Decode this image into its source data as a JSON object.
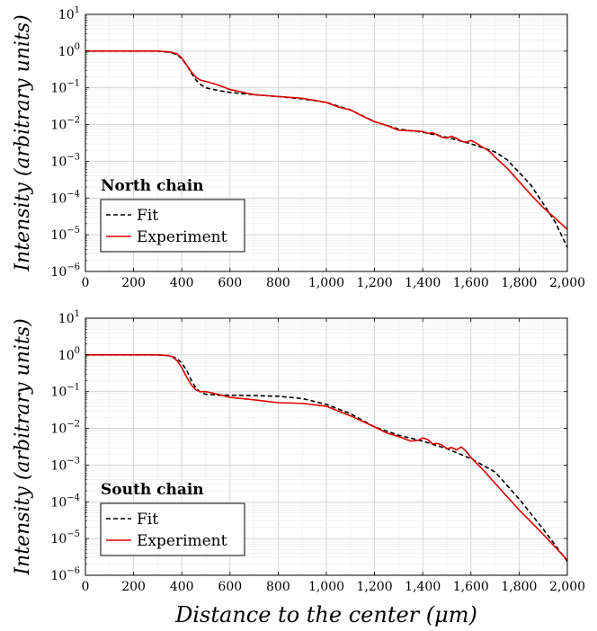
{
  "chart_data": [
    {
      "type": "line",
      "title": "North chain",
      "ylabel": "Intensity (arbitrary units)",
      "xlabel": "",
      "xlim": [
        0,
        2000
      ],
      "ylim": [
        1e-06,
        10
      ],
      "yscale": "log",
      "grid": true,
      "legend": "bottom-left",
      "x_ticks": [
        "0",
        "200",
        "400",
        "600",
        "800",
        "1,000",
        "1,200",
        "1,400",
        "1,600",
        "1,800",
        "2,000"
      ],
      "y_ticks": [
        {
          "base": "10",
          "exp": "1"
        },
        {
          "base": "10",
          "exp": "0"
        },
        {
          "base": "10",
          "exp": "−1"
        },
        {
          "base": "10",
          "exp": "−2"
        },
        {
          "base": "10",
          "exp": "−3"
        },
        {
          "base": "10",
          "exp": "−4"
        },
        {
          "base": "10",
          "exp": "−5"
        },
        {
          "base": "10",
          "exp": "−6"
        }
      ],
      "series": [
        {
          "name": "Fit",
          "color": "#000000",
          "style": "dashed",
          "x": [
            0,
            300,
            350,
            380,
            400,
            420,
            440,
            460,
            480,
            500,
            550,
            600,
            700,
            800,
            900,
            1000,
            1100,
            1200,
            1300,
            1400,
            1500,
            1600,
            1700,
            1750,
            1800,
            1850,
            1900,
            1950,
            2000
          ],
          "y": [
            1,
            1,
            0.93,
            0.8,
            0.62,
            0.42,
            0.25,
            0.16,
            0.12,
            0.1,
            0.085,
            0.075,
            0.065,
            0.058,
            0.05,
            0.04,
            0.025,
            0.012,
            0.0075,
            0.0062,
            0.0045,
            0.003,
            0.0018,
            0.0011,
            0.0005,
            0.00022,
            7e-05,
            2.2e-05,
            4.5e-06
          ]
        },
        {
          "name": "Experiment",
          "color": "#dd0000",
          "style": "solid",
          "x": [
            0,
            300,
            350,
            380,
            400,
            420,
            440,
            460,
            480,
            500,
            550,
            600,
            700,
            800,
            900,
            1000,
            1050,
            1100,
            1150,
            1200,
            1250,
            1300,
            1350,
            1400,
            1420,
            1440,
            1460,
            1480,
            1500,
            1520,
            1540,
            1560,
            1580,
            1600,
            1620,
            1640,
            1660,
            1680,
            1700,
            1750,
            1800,
            1850,
            1900,
            1950,
            2000
          ],
          "y": [
            1,
            1,
            0.95,
            0.85,
            0.65,
            0.42,
            0.27,
            0.19,
            0.16,
            0.15,
            0.12,
            0.09,
            0.065,
            0.058,
            0.052,
            0.04,
            0.03,
            0.025,
            0.017,
            0.012,
            0.0095,
            0.007,
            0.0068,
            0.0065,
            0.0058,
            0.006,
            0.0053,
            0.0045,
            0.0043,
            0.0048,
            0.0042,
            0.0035,
            0.0033,
            0.0037,
            0.0032,
            0.0026,
            0.0022,
            0.0018,
            0.0013,
            0.00065,
            0.00028,
            0.00012,
            5.5e-05,
            2.8e-05,
            1.4e-05
          ]
        }
      ]
    },
    {
      "type": "line",
      "title": "South chain",
      "ylabel": "Intensity (arbitrary units)",
      "xlabel": "Distance to the center (μm)",
      "xlim": [
        0,
        2000
      ],
      "ylim": [
        1e-06,
        10
      ],
      "yscale": "log",
      "grid": true,
      "legend": "bottom-left",
      "x_ticks": [
        "0",
        "200",
        "400",
        "600",
        "800",
        "1,000",
        "1,200",
        "1,400",
        "1,600",
        "1,800",
        "2,000"
      ],
      "y_ticks": [
        {
          "base": "10",
          "exp": "1"
        },
        {
          "base": "10",
          "exp": "0"
        },
        {
          "base": "10",
          "exp": "−1"
        },
        {
          "base": "10",
          "exp": "−2"
        },
        {
          "base": "10",
          "exp": "−3"
        },
        {
          "base": "10",
          "exp": "−4"
        },
        {
          "base": "10",
          "exp": "−5"
        },
        {
          "base": "10",
          "exp": "−6"
        }
      ],
      "series": [
        {
          "name": "Fit",
          "color": "#000000",
          "style": "dashed",
          "x": [
            0,
            300,
            350,
            380,
            400,
            420,
            440,
            460,
            480,
            500,
            550,
            600,
            700,
            800,
            900,
            1000,
            1100,
            1200,
            1300,
            1400,
            1500,
            1600,
            1700,
            1800,
            1900,
            2000
          ],
          "y": [
            1,
            1,
            0.95,
            0.8,
            0.6,
            0.38,
            0.2,
            0.12,
            0.095,
            0.085,
            0.08,
            0.08,
            0.078,
            0.075,
            0.065,
            0.045,
            0.025,
            0.011,
            0.0065,
            0.0045,
            0.0028,
            0.0015,
            0.00065,
            0.00012,
            1.8e-05,
            2.4e-06
          ]
        },
        {
          "name": "Experiment",
          "color": "#dd0000",
          "style": "solid",
          "x": [
            0,
            300,
            340,
            360,
            380,
            400,
            420,
            440,
            460,
            480,
            500,
            550,
            600,
            700,
            800,
            900,
            1000,
            1100,
            1200,
            1250,
            1300,
            1350,
            1380,
            1400,
            1420,
            1440,
            1460,
            1480,
            1500,
            1520,
            1540,
            1560,
            1580,
            1600,
            1650,
            1700,
            1800,
            1900,
            2000
          ],
          "y": [
            1,
            1,
            0.97,
            0.9,
            0.7,
            0.45,
            0.25,
            0.15,
            0.11,
            0.1,
            0.1,
            0.085,
            0.07,
            0.06,
            0.05,
            0.048,
            0.04,
            0.022,
            0.011,
            0.0075,
            0.006,
            0.0045,
            0.0047,
            0.0055,
            0.005,
            0.0038,
            0.0039,
            0.0035,
            0.0028,
            0.003,
            0.0026,
            0.0031,
            0.0024,
            0.0016,
            0.00075,
            0.00032,
            6e-05,
            1.3e-05,
            2.6e-06
          ]
        }
      ]
    }
  ]
}
